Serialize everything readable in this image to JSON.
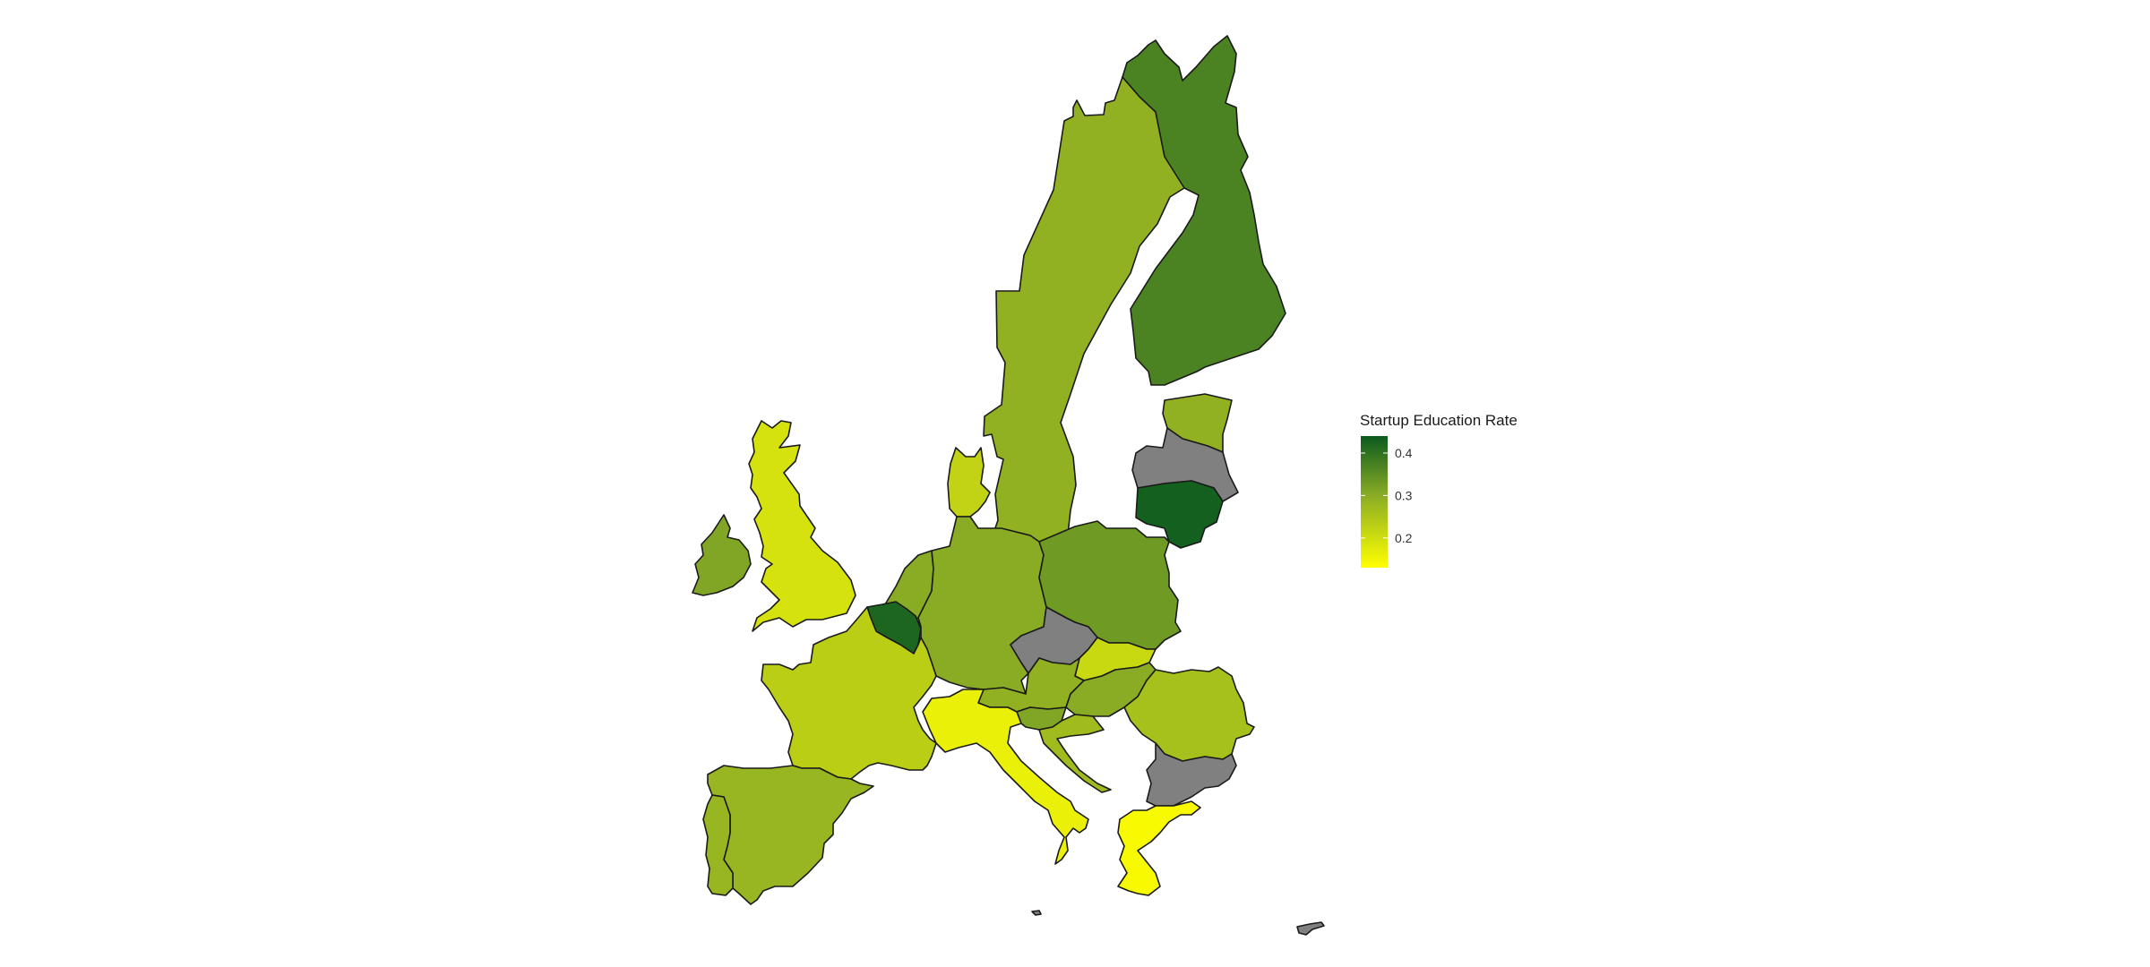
{
  "legend": {
    "title": "Startup Education Rate",
    "min": 0.13,
    "max": 0.44,
    "ticks": [
      {
        "value": 0.4,
        "label": "0.4"
      },
      {
        "value": 0.3,
        "label": "0.3"
      },
      {
        "value": 0.2,
        "label": "0.2"
      }
    ]
  },
  "colors": {
    "low": "#ffff00",
    "mid": "#8aac25",
    "high": "#0b5a1e",
    "na": "#808080",
    "border": "#1a1a1a"
  },
  "regions": {
    "sweden": {
      "rate": 0.29
    },
    "finland": {
      "rate": 0.37
    },
    "estonia": {
      "rate": 0.29
    },
    "latvia": {
      "rate": null
    },
    "lithuania": {
      "rate": 0.43
    },
    "denmark": {
      "rate": 0.22
    },
    "ireland": {
      "rate": 0.31
    },
    "united-kingdom": {
      "rate": 0.19
    },
    "netherlands": {
      "rate": 0.3
    },
    "belgium": {
      "rate": 0.42
    },
    "germany": {
      "rate": 0.3
    },
    "poland": {
      "rate": 0.33
    },
    "czechia": {
      "rate": null
    },
    "slovakia": {
      "rate": 0.21
    },
    "austria": {
      "rate": 0.29
    },
    "hungary": {
      "rate": 0.3
    },
    "slovenia": {
      "rate": 0.31
    },
    "croatia": {
      "rate": 0.27
    },
    "romania": {
      "rate": 0.26
    },
    "bulgaria": {
      "rate": null
    },
    "greece": {
      "rate": 0.14
    },
    "italy": {
      "rate": 0.16
    },
    "france": {
      "rate": 0.23
    },
    "spain": {
      "rate": 0.28
    },
    "portugal": {
      "rate": 0.28
    },
    "malta": {
      "rate": null
    },
    "cyprus": {
      "rate": null
    }
  }
}
